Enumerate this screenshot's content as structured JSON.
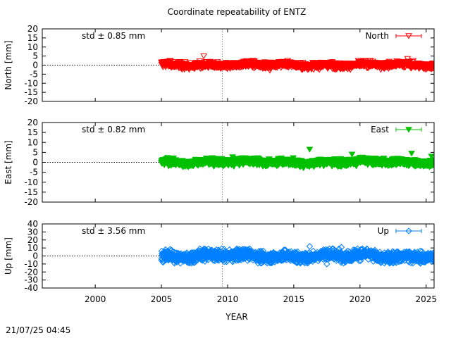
{
  "title": "Coordinate repeatability of ENTZ",
  "timestamp": "21/07/25 04:45",
  "chart_data": {
    "type": "scatter",
    "xlabel": "YEAR",
    "xlim": [
      1996,
      2025.6
    ],
    "xticks": [
      "2000",
      "2005",
      "2010",
      "2015",
      "2020",
      "2025"
    ],
    "vertical_marker_x": 2009.6,
    "panels": [
      {
        "id": "north",
        "ylabel": "North [mm]",
        "ylim": [
          -20,
          20
        ],
        "yticks": [
          "20",
          "15",
          "10",
          "5",
          "0",
          "-5",
          "-10",
          "-15",
          "-20"
        ],
        "std_label": "std ± 0.85 mm",
        "legend": "North",
        "legend_position": "top-right",
        "color": "#ff0000",
        "marker": "triangle-down-open",
        "data_start": 2005.0,
        "data_end": 2025.6,
        "std": 0.85,
        "envelope_mm": 2.5,
        "outliers": [
          [
            2008.2,
            5
          ],
          [
            2013.2,
            -3
          ],
          [
            2023.6,
            3.5
          ]
        ]
      },
      {
        "id": "east",
        "ylabel": "East [mm]",
        "ylim": [
          -20,
          20
        ],
        "yticks": [
          "20",
          "15",
          "10",
          "5",
          "0",
          "-5",
          "-10",
          "-15",
          "-20"
        ],
        "std_label": "std ± 0.82 mm",
        "legend": "East",
        "legend_position": "top-right",
        "color": "#00c000",
        "marker": "triangle-down-filled",
        "data_start": 2005.0,
        "data_end": 2025.6,
        "std": 0.82,
        "envelope_mm": 2.8,
        "outliers": [
          [
            2016.2,
            6.5
          ],
          [
            2019.4,
            4
          ],
          [
            2023.9,
            4.5
          ],
          [
            2025.4,
            3
          ]
        ]
      },
      {
        "id": "up",
        "ylabel": "Up [mm]",
        "ylim": [
          -40,
          40
        ],
        "yticks": [
          "40",
          "30",
          "20",
          "10",
          "0",
          "-10",
          "-20",
          "-30",
          "-40"
        ],
        "std_label": "std ± 3.56 mm",
        "legend": "Up",
        "legend_position": "top-right",
        "color": "#0080ff",
        "marker": "diamond-open",
        "data_start": 2005.0,
        "data_end": 2025.6,
        "std": 3.56,
        "envelope_mm": 9,
        "outliers": [
          [
            2016.2,
            12
          ],
          [
            2017.5,
            -10
          ],
          [
            2018.6,
            11
          ],
          [
            2024.0,
            -9
          ]
        ]
      }
    ]
  }
}
